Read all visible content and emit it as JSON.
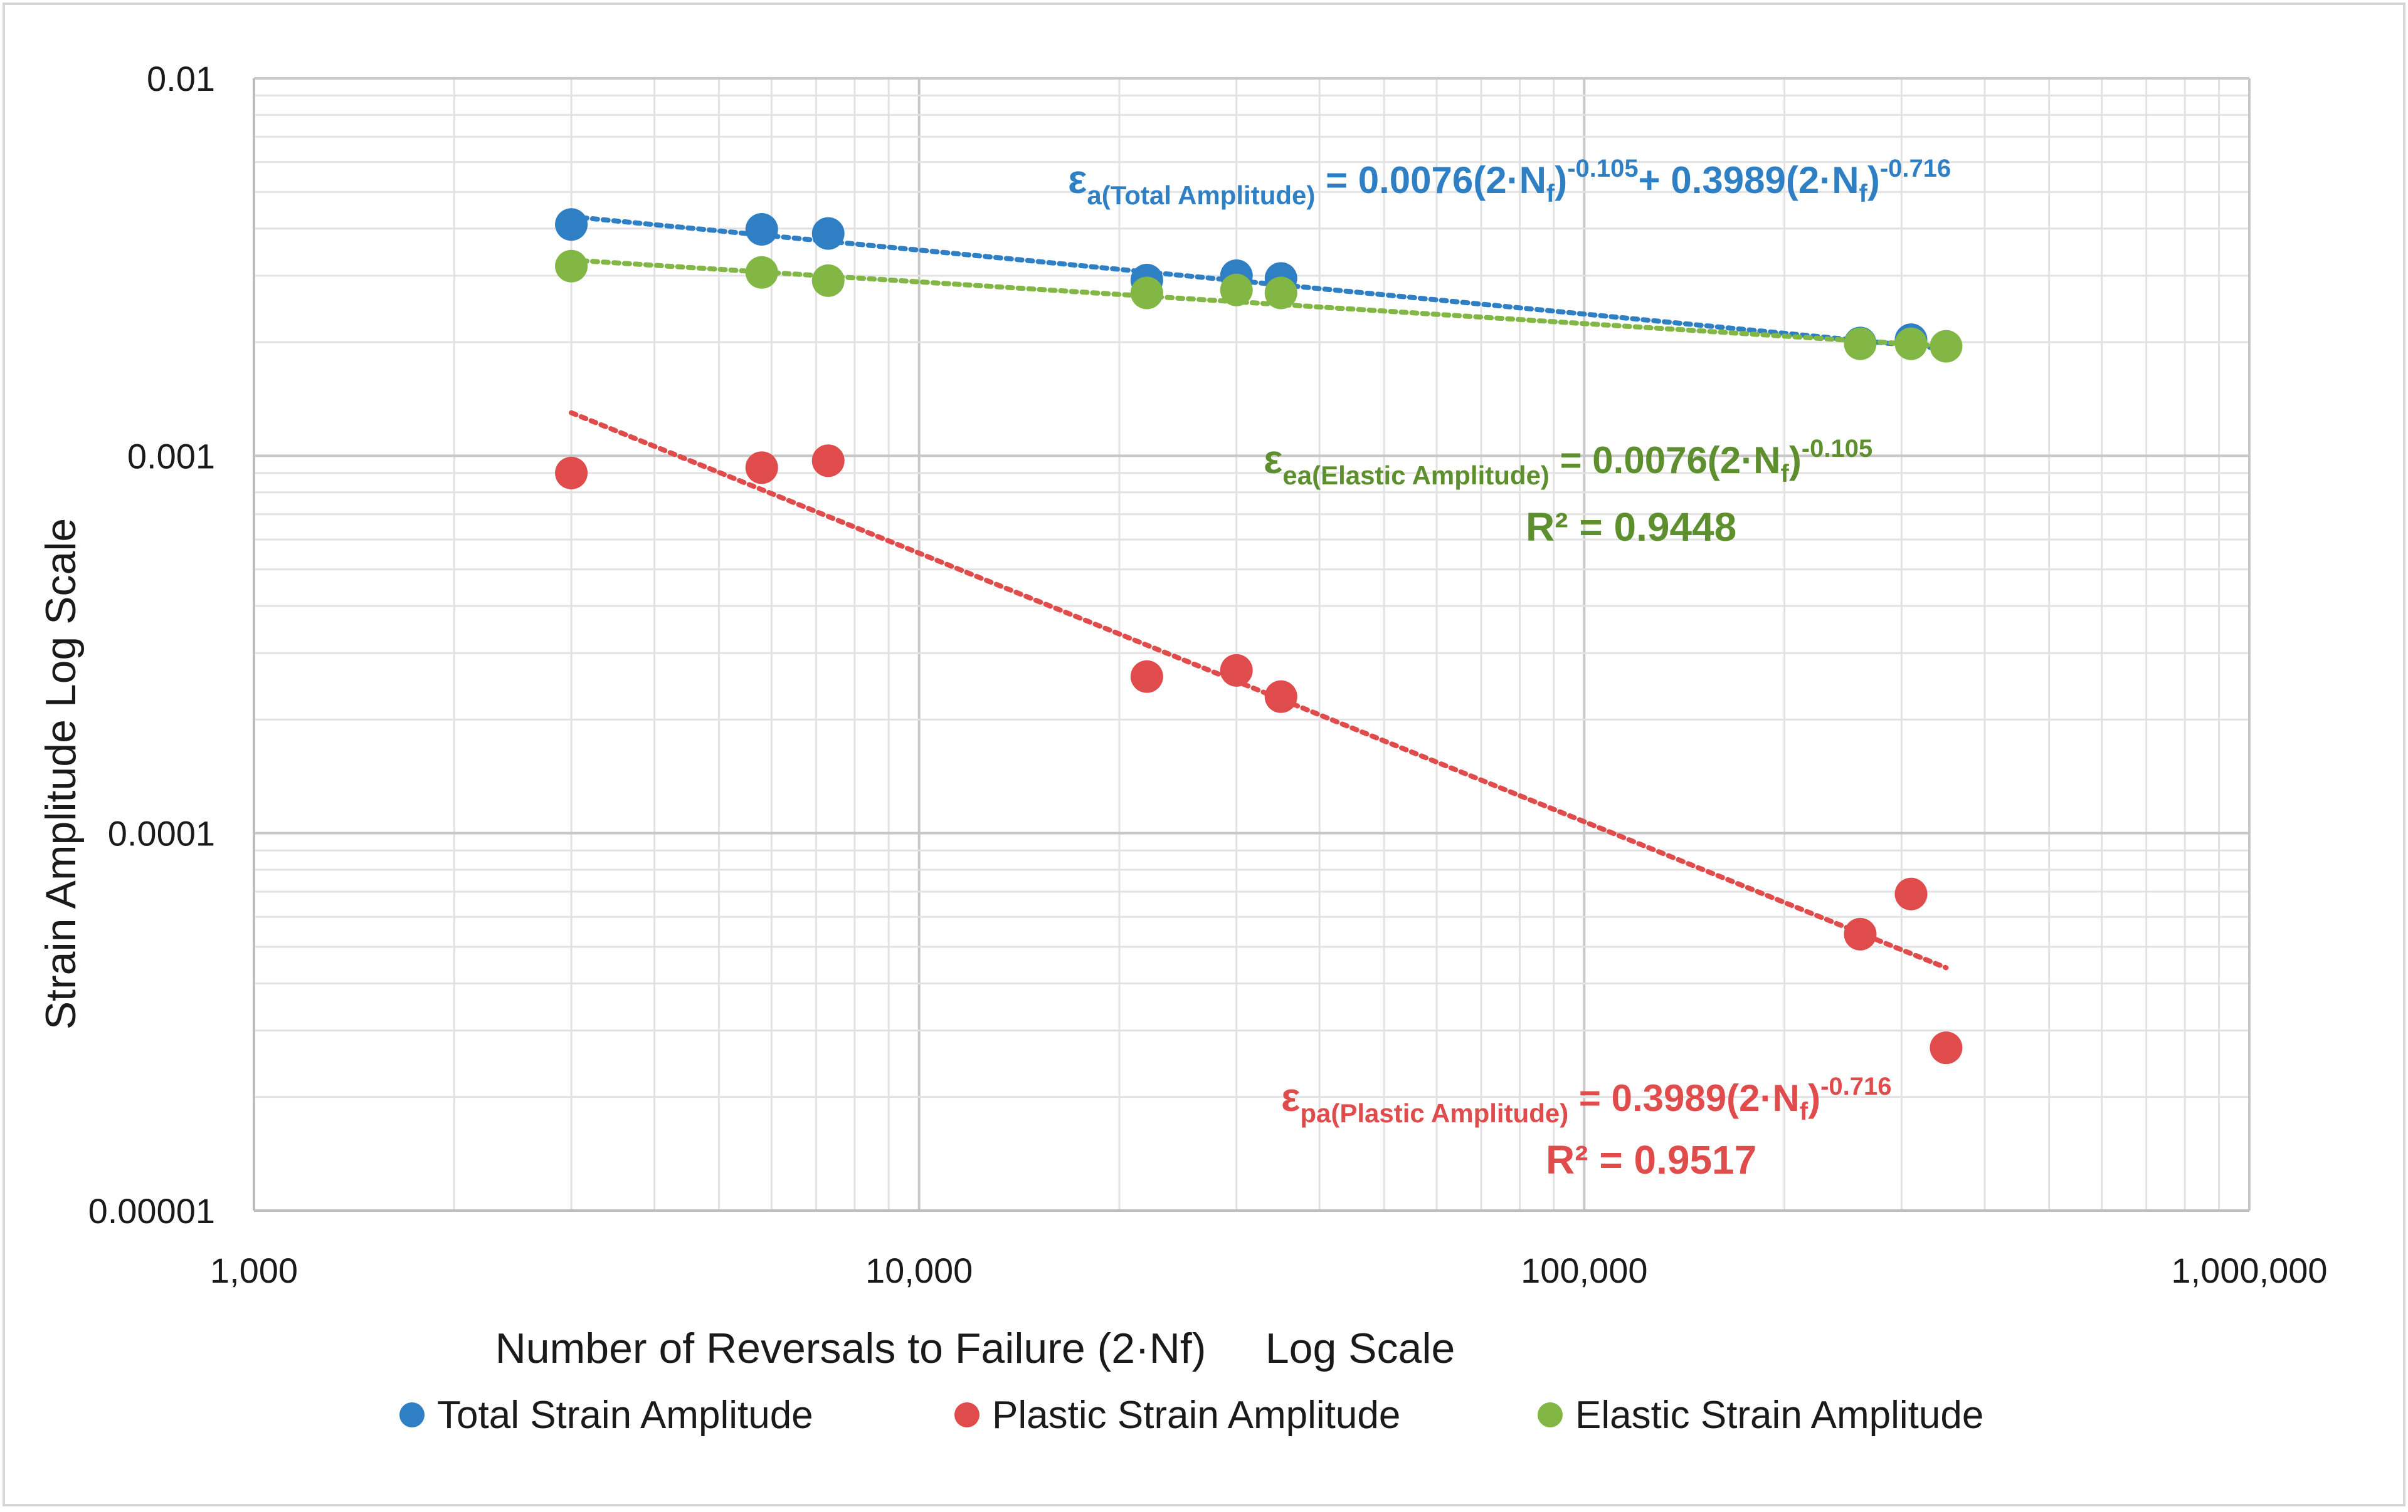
{
  "chart_data": {
    "type": "scatter",
    "title": "",
    "xlabel": "Number of Reversals to Failure (2·Nf)     Log Scale",
    "ylabel": "Strain Amplitude     Log Scale",
    "xscale": "log",
    "yscale": "log",
    "xlim": [
      1000,
      1000000
    ],
    "ylim": [
      1e-05,
      0.01
    ],
    "grid": true,
    "legend_position": "bottom",
    "x_tick_labels": [
      "1,000",
      "10,000",
      "100,000",
      "1,000,000"
    ],
    "y_tick_labels": [
      "0.01",
      "0.001",
      "0.0001",
      "0.00001"
    ],
    "series": [
      {
        "name": "Total Strain Amplitude",
        "color": "#2e7fc4",
        "x": [
          3000,
          5800,
          7300,
          22000,
          30000,
          35000,
          260000,
          310000
        ],
        "y": [
          0.0041,
          0.00398,
          0.00388,
          0.00292,
          0.003,
          0.00295,
          0.00199,
          0.00203
        ],
        "trendline": {
          "x": [
            3000,
            350000
          ],
          "y": [
            0.0043,
            0.00192
          ]
        }
      },
      {
        "name": "Plastic Strain Amplitude",
        "color": "#e04b4b",
        "x": [
          3000,
          5800,
          7300,
          22000,
          30000,
          35000,
          260000,
          310000,
          350000
        ],
        "y": [
          0.0009,
          0.00093,
          0.00097,
          0.00026,
          0.00027,
          0.00023,
          5.4e-05,
          6.9e-05,
          2.7e-05
        ],
        "trendline": {
          "x": [
            3000,
            350000
          ],
          "y": [
            0.0013,
            4.4e-05
          ]
        }
      },
      {
        "name": "Elastic Strain Amplitude",
        "color": "#82b746",
        "x": [
          3000,
          5800,
          7300,
          22000,
          30000,
          35000,
          260000,
          310000,
          350000
        ],
        "y": [
          0.00318,
          0.00306,
          0.00291,
          0.0027,
          0.00275,
          0.0027,
          0.00198,
          0.00198,
          0.00195
        ],
        "trendline": {
          "x": [
            3000,
            350000
          ],
          "y": [
            0.0033,
            0.00195
          ]
        }
      }
    ],
    "annotations": {
      "total": {
        "color": "#2e7fc4",
        "symbol": "ε",
        "sub": "a(Total Amplitude)",
        "text1": " = 0.0076(2·N",
        "sub_f1": "f",
        "close1": ")",
        "exp1": "-0.105",
        "text2": "+ 0.3989(2·N",
        "sub_f2": "f",
        "close2": ")",
        "exp2": "-0.716"
      },
      "elastic": {
        "color": "#5e8f2e",
        "symbol": "ε",
        "sub": "ea(Elastic Amplitude)",
        "text1": " = 0.0076(2·N",
        "sub_f": "f",
        "close": ")",
        "exp": "-0.105",
        "r2": "R² = 0.9448"
      },
      "plastic": {
        "color": "#e04b4b",
        "symbol": "ε",
        "sub": "pa(Plastic Amplitude)",
        "text1": " = 0.3989(2·N",
        "sub_f": "f",
        "close": ")",
        "exp": "-0.716",
        "r2": "R² = 0.9517"
      }
    }
  }
}
